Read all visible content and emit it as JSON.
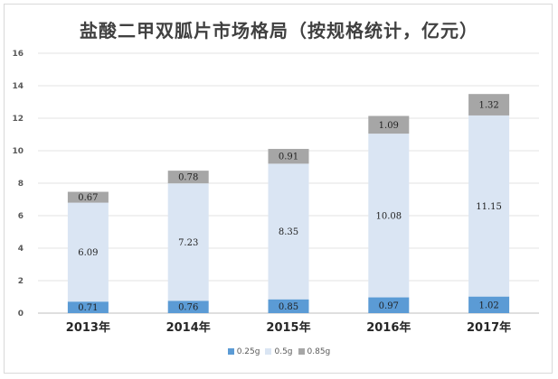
{
  "chart_data": {
    "type": "bar",
    "stacked": true,
    "title": "盐酸二甲双胍片市场格局（按规格统计，亿元）",
    "categories": [
      "2013年",
      "2014年",
      "2015年",
      "2016年",
      "2017年"
    ],
    "series": [
      {
        "name": "0.25g",
        "color": "#5b9bd5",
        "values": [
          0.71,
          0.76,
          0.85,
          0.97,
          1.02
        ]
      },
      {
        "name": "0.5g",
        "color": "#dae5f3",
        "values": [
          6.09,
          7.23,
          8.35,
          10.08,
          11.15
        ]
      },
      {
        "name": "0.85g",
        "color": "#a6a6a6",
        "values": [
          0.67,
          0.78,
          0.91,
          1.09,
          1.32
        ]
      }
    ],
    "data_labels": [
      [
        "0.71",
        "0.76",
        "0.85",
        "0.97",
        "1.02"
      ],
      [
        "6.09",
        "7.23",
        "8.35",
        "10.08",
        "11.15"
      ],
      [
        "0.67",
        "0.78",
        "0.91",
        "1.09",
        "1.32"
      ]
    ],
    "y_ticks": [
      "0",
      "2",
      "4",
      "6",
      "8",
      "10",
      "12",
      "14",
      "16"
    ],
    "ylim": [
      0,
      16
    ],
    "grid": true,
    "legend_position": "bottom"
  }
}
